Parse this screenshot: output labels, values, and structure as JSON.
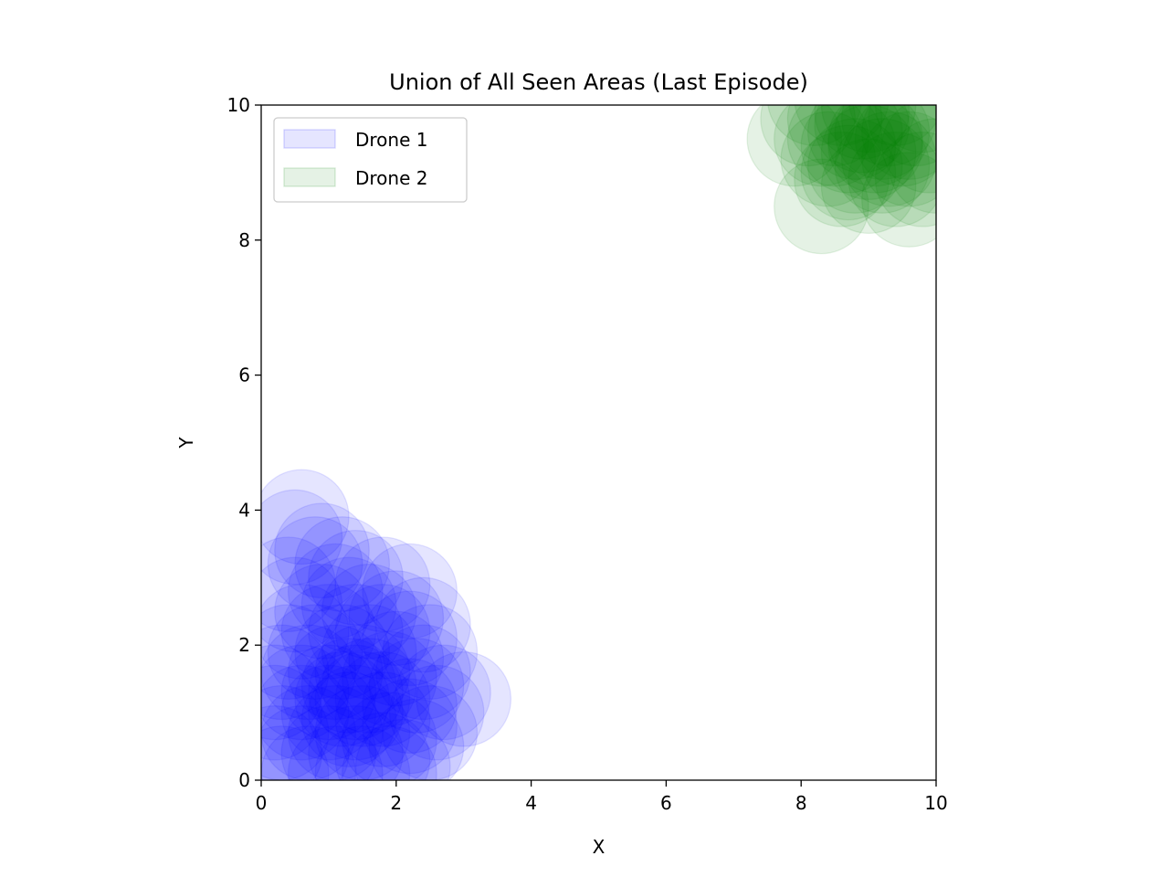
{
  "chart_data": {
    "type": "scatter",
    "title": "Union of All Seen Areas (Last Episode)",
    "xlabel": "X",
    "ylabel": "Y",
    "xlim": [
      0,
      10
    ],
    "ylim": [
      0,
      10
    ],
    "xticks": [
      "0",
      "2",
      "4",
      "6",
      "8",
      "10"
    ],
    "yticks": [
      "0",
      "2",
      "4",
      "6",
      "8",
      "10"
    ],
    "grid": false,
    "legend_position": "upper-left",
    "circle_radius": 0.7,
    "series": [
      {
        "name": "Drone 1",
        "color": "#0000ff",
        "opacity": 0.1,
        "points": [
          [
            0.6,
            3.9
          ],
          [
            0.5,
            3.6
          ],
          [
            0.9,
            3.4
          ],
          [
            0.8,
            3.2
          ],
          [
            1.2,
            3.2
          ],
          [
            1.4,
            3.0
          ],
          [
            1.8,
            2.9
          ],
          [
            2.2,
            2.8
          ],
          [
            1.1,
            2.8
          ],
          [
            0.5,
            2.6
          ],
          [
            0.9,
            2.5
          ],
          [
            1.3,
            2.6
          ],
          [
            1.6,
            2.5
          ],
          [
            2.0,
            2.4
          ],
          [
            2.4,
            2.3
          ],
          [
            0.6,
            2.2
          ],
          [
            1.0,
            2.2
          ],
          [
            1.4,
            2.2
          ],
          [
            1.8,
            2.2
          ],
          [
            2.2,
            2.1
          ],
          [
            2.5,
            1.9
          ],
          [
            0.4,
            1.9
          ],
          [
            0.8,
            1.9
          ],
          [
            1.2,
            1.9
          ],
          [
            1.6,
            1.9
          ],
          [
            2.0,
            1.8
          ],
          [
            2.4,
            1.6
          ],
          [
            0.3,
            1.6
          ],
          [
            0.7,
            1.6
          ],
          [
            1.1,
            1.6
          ],
          [
            1.5,
            1.6
          ],
          [
            1.9,
            1.5
          ],
          [
            2.3,
            1.4
          ],
          [
            2.7,
            1.3
          ],
          [
            3.0,
            1.2
          ],
          [
            0.2,
            1.3
          ],
          [
            0.6,
            1.3
          ],
          [
            1.0,
            1.3
          ],
          [
            1.4,
            1.3
          ],
          [
            1.8,
            1.2
          ],
          [
            2.2,
            1.1
          ],
          [
            2.6,
            1.0
          ],
          [
            0.2,
            1.0
          ],
          [
            0.6,
            1.0
          ],
          [
            1.0,
            1.0
          ],
          [
            1.4,
            1.0
          ],
          [
            1.8,
            0.9
          ],
          [
            2.2,
            0.8
          ],
          [
            2.5,
            0.7
          ],
          [
            0.3,
            0.7
          ],
          [
            0.7,
            0.7
          ],
          [
            1.1,
            0.7
          ],
          [
            1.5,
            0.7
          ],
          [
            1.9,
            0.6
          ],
          [
            2.3,
            0.5
          ],
          [
            0.2,
            0.4
          ],
          [
            0.6,
            0.4
          ],
          [
            1.0,
            0.4
          ],
          [
            1.4,
            0.4
          ],
          [
            1.8,
            0.3
          ],
          [
            2.1,
            0.2
          ],
          [
            0.3,
            0.1
          ],
          [
            0.7,
            0.1
          ],
          [
            1.1,
            0.1
          ],
          [
            1.5,
            0.1
          ],
          [
            1.9,
            0.1
          ],
          [
            0.4,
            2.9
          ],
          [
            1.3,
            1.4
          ],
          [
            1.6,
            1.4
          ],
          [
            1.2,
            1.2
          ],
          [
            1.5,
            1.2
          ],
          [
            1.3,
            0.9
          ]
        ]
      },
      {
        "name": "Drone 2",
        "color": "#008000",
        "opacity": 0.1,
        "points": [
          [
            8.3,
            8.5
          ],
          [
            9.6,
            8.6
          ],
          [
            8.6,
            8.9
          ],
          [
            9.0,
            8.8
          ],
          [
            9.4,
            8.9
          ],
          [
            9.8,
            8.9
          ],
          [
            8.4,
            9.2
          ],
          [
            8.8,
            9.1
          ],
          [
            9.2,
            9.1
          ],
          [
            9.6,
            9.2
          ],
          [
            10.0,
            9.1
          ],
          [
            7.9,
            9.5
          ],
          [
            8.3,
            9.5
          ],
          [
            8.7,
            9.4
          ],
          [
            9.1,
            9.4
          ],
          [
            9.5,
            9.5
          ],
          [
            9.9,
            9.4
          ],
          [
            8.1,
            9.8
          ],
          [
            8.5,
            9.8
          ],
          [
            8.9,
            9.7
          ],
          [
            9.3,
            9.8
          ],
          [
            9.7,
            9.8
          ],
          [
            8.2,
            10.1
          ],
          [
            8.6,
            10.1
          ],
          [
            9.0,
            10.0
          ],
          [
            9.4,
            10.1
          ],
          [
            9.8,
            10.0
          ],
          [
            8.8,
            9.6
          ],
          [
            9.2,
            9.6
          ],
          [
            9.0,
            9.3
          ],
          [
            8.7,
            9.0
          ],
          [
            9.3,
            9.2
          ],
          [
            8.5,
            9.5
          ],
          [
            9.6,
            9.6
          ],
          [
            8.9,
            9.9
          ],
          [
            9.1,
            9.5
          ]
        ]
      }
    ]
  }
}
